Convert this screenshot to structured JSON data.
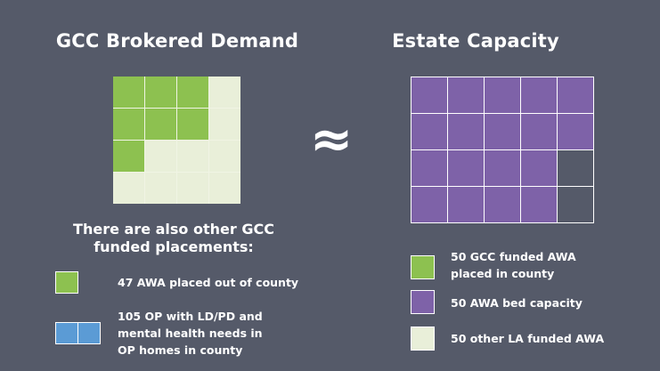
{
  "left_title": "GCC Brokered Demand",
  "right_title": "Estate Capacity",
  "approx_symbol": "≈",
  "colors": {
    "background": "#555a69",
    "green": "#8dc150",
    "light_green": "#e9efd9",
    "purple": "#7e62a8",
    "blue": "#5b9bd5"
  },
  "left_grid": {
    "cells": [
      "green",
      "green",
      "green",
      "light",
      "green",
      "green",
      "green",
      "light",
      "green",
      "light",
      "light",
      "light",
      "light",
      "light",
      "light",
      "light"
    ]
  },
  "right_grid": {
    "cells": [
      "purple",
      "purple",
      "purple",
      "purple",
      "purple",
      "purple",
      "purple",
      "purple",
      "purple",
      "purple",
      "purple",
      "purple",
      "purple",
      "purple",
      "empty",
      "purple",
      "purple",
      "purple",
      "purple",
      "empty"
    ]
  },
  "other_heading_line1": "There are also other GCC",
  "other_heading_line2": "funded placements:",
  "legend_left": [
    {
      "lines": [
        "47 AWA placed out of county"
      ]
    },
    {
      "lines": [
        "105 OP with LD/PD and",
        "mental health needs in",
        "OP homes in county"
      ]
    }
  ],
  "legend_right": [
    {
      "lines": [
        "50 GCC funded AWA",
        "placed in county"
      ]
    },
    {
      "lines": [
        "50 AWA bed capacity"
      ]
    },
    {
      "lines": [
        "50 other LA funded AWA"
      ]
    }
  ]
}
